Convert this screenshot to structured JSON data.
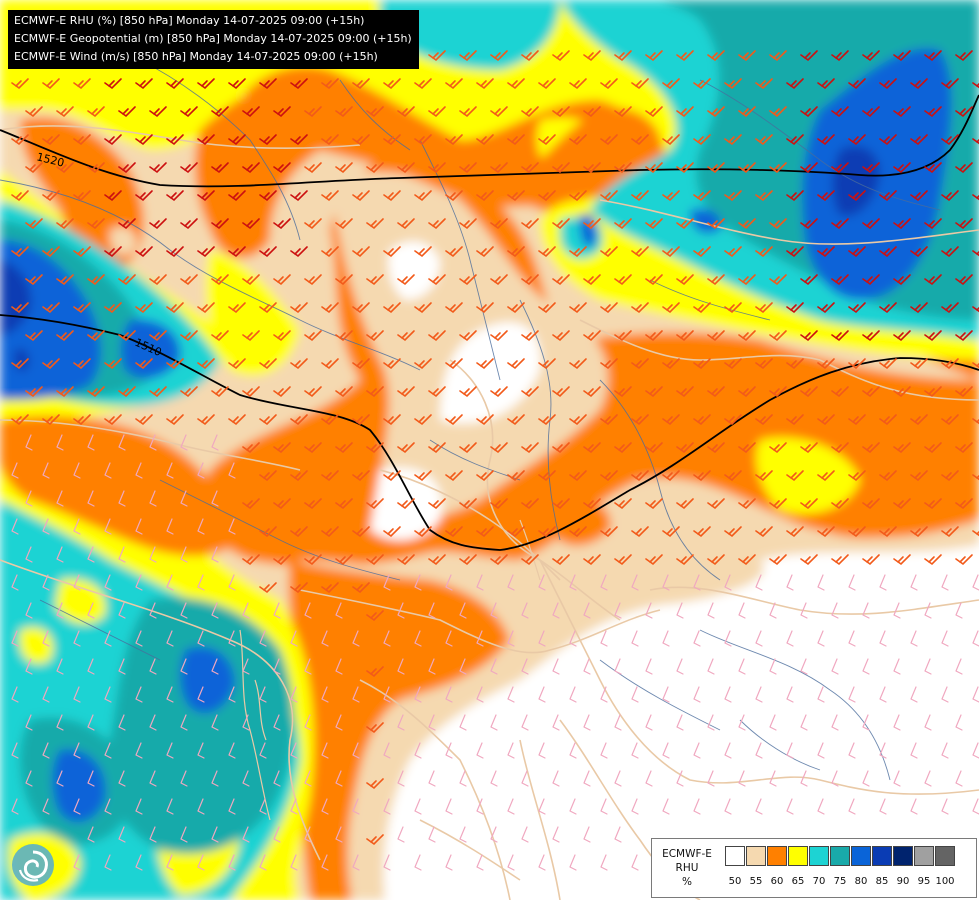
{
  "header": {
    "lines": [
      "ECMWF-E RHU (%) [850 hPa] Monday 14-07-2025 09:00 (+15h)",
      "ECMWF-E Geopotential (m) [850 hPa] Monday 14-07-2025 09:00 (+15h)",
      "ECMWF-E Wind (m/s) [850 hPa] Monday 14-07-2025 09:00 (+15h)"
    ]
  },
  "contours": {
    "labels": [
      "1520",
      "1510"
    ],
    "color": "#000000"
  },
  "legend": {
    "title_lines": [
      "ECMWF-E",
      "RHU",
      "%"
    ],
    "classes": [
      {
        "label": "50",
        "color": "#ffffff"
      },
      {
        "label": "55",
        "color": "#f5d9b0"
      },
      {
        "label": "60",
        "color": "#ff8000"
      },
      {
        "label": "65",
        "color": "#ffff00"
      },
      {
        "label": "70",
        "color": "#1dd3d3"
      },
      {
        "label": "75",
        "color": "#19aaaa"
      },
      {
        "label": "80",
        "color": "#0a64d8"
      },
      {
        "label": "85",
        "color": "#0a3cb4"
      },
      {
        "label": "90",
        "color": "#00236e"
      },
      {
        "label": "95",
        "color": "#a0a0a0"
      },
      {
        "label": "100",
        "color": "#646464"
      }
    ]
  },
  "colors": {
    "border_line": "#e9c9a6",
    "river_line": "#4a6c9c",
    "wind_barb_light": "#f0a8c0",
    "wind_barb_mid": "#f25a1a",
    "wind_barb_strong": "#cc1010"
  },
  "logo": {
    "icon": "ecmwf-swirl-logo"
  }
}
